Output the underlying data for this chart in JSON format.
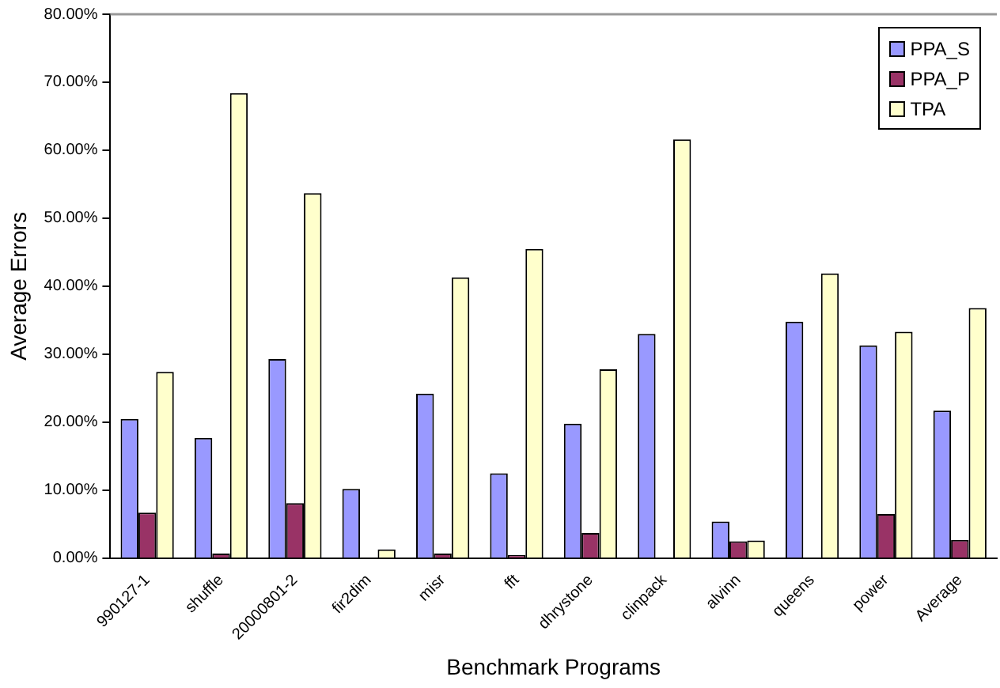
{
  "chart_data": {
    "type": "bar",
    "xlabel": "Benchmark Programs",
    "ylabel": "Average Errors",
    "categories": [
      "990127-1",
      "shuffle",
      "20000801-2",
      "fir2dim",
      "misr",
      "fft",
      "dhrystone",
      "clinpack",
      "alvinn",
      "queens",
      "power",
      "Average"
    ],
    "series": [
      {
        "name": "PPA_S",
        "color": "#9999ff",
        "values": [
          20.5,
          17.7,
          29.3,
          10.2,
          24.2,
          12.5,
          19.8,
          33,
          5.4,
          34.8,
          31.3,
          21.7
        ]
      },
      {
        "name": "PPA_P",
        "color": "#993366",
        "values": [
          6.7,
          0.7,
          8.1,
          0,
          0.7,
          0.5,
          3.7,
          0,
          2.5,
          0,
          6.5,
          2.7
        ]
      },
      {
        "name": "TPA",
        "color": "#ffffcc",
        "values": [
          27.4,
          68.4,
          53.7,
          1.3,
          41.3,
          45.5,
          27.8,
          61.6,
          2.6,
          41.9,
          33.3,
          36.8
        ]
      }
    ],
    "ylim": [
      0,
      80
    ],
    "yticks": [
      {
        "value": 0,
        "label": "0.00%"
      },
      {
        "value": 10,
        "label": "10.00%"
      },
      {
        "value": 20,
        "label": "20.00%"
      },
      {
        "value": 30,
        "label": "30.00%"
      },
      {
        "value": 40,
        "label": "40.00%"
      },
      {
        "value": 50,
        "label": "50.00%"
      },
      {
        "value": 60,
        "label": "60.00%"
      },
      {
        "value": 70,
        "label": "70.00%"
      },
      {
        "value": 80,
        "label": "80.00%"
      }
    ],
    "grid": false,
    "legend": "top right"
  }
}
